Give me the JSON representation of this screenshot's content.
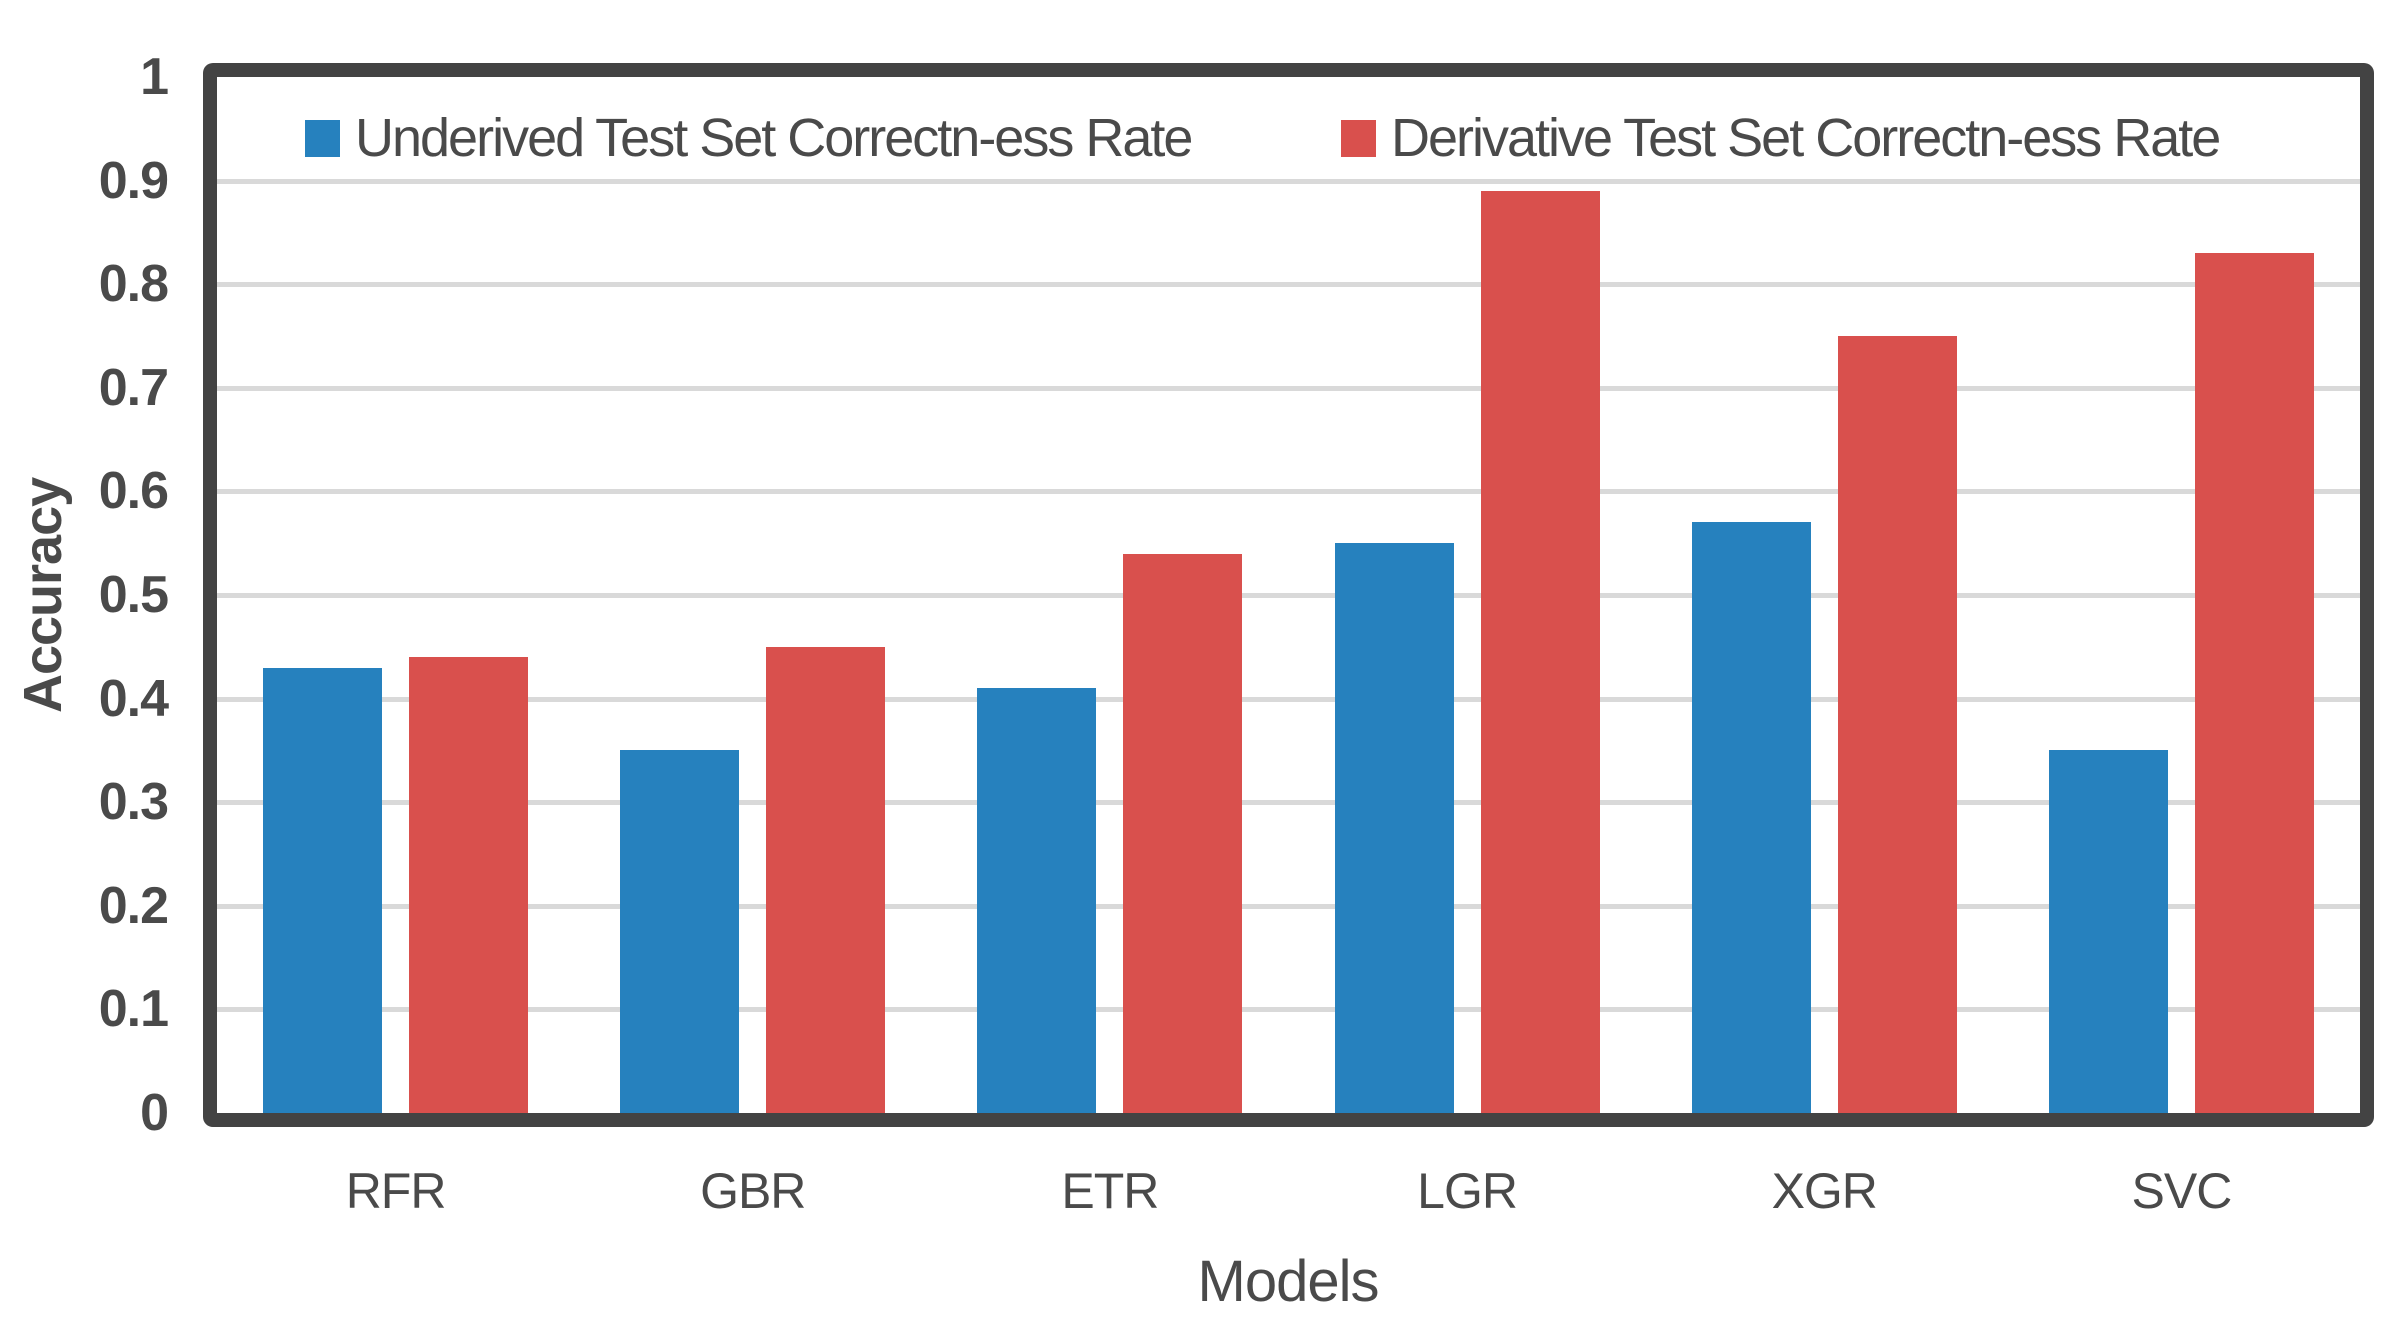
{
  "chart_data": {
    "type": "bar",
    "title": "",
    "xlabel": "Models",
    "ylabel": "Accuracy",
    "categories": [
      "RFR",
      "GBR",
      "ETR",
      "LGR",
      "XGR",
      "SVC"
    ],
    "series": [
      {
        "name": "Underived Test Set Correctn-ess Rate",
        "color": "#2681BE",
        "values": [
          0.43,
          0.35,
          0.41,
          0.55,
          0.57,
          0.35
        ]
      },
      {
        "name": "Derivative Test Set Correctn-ess Rate",
        "color": "#D9504D",
        "values": [
          0.44,
          0.45,
          0.54,
          0.89,
          0.75,
          0.83
        ]
      }
    ],
    "ylim": [
      0,
      1
    ],
    "y_ticks": [
      "1",
      "0.9",
      "0.8",
      "0.7",
      "0.6",
      "0.5",
      "0.4",
      "0.3",
      "0.2",
      "0.1",
      "0"
    ],
    "grid": true,
    "legend_position": "top-inside"
  },
  "colors": {
    "background": "#FFFFFF",
    "frame": "#434343",
    "gridline": "#D9D9D9",
    "text": "#4A4A4A",
    "series_blue": "#2681BE",
    "series_red": "#D9504D"
  }
}
